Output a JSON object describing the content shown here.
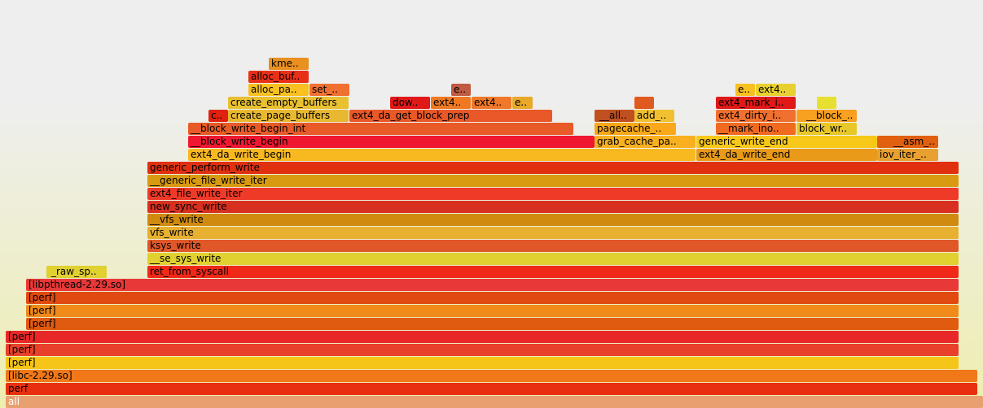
{
  "frames": [
    {
      "label": "all",
      "color": "#e8a070"
    },
    {
      "label": "perf",
      "color": "#e83010"
    },
    {
      "label": "[libc-2.29.so]",
      "color": "#f07818"
    },
    {
      "label": "[perf]",
      "color": "#f5c518"
    },
    {
      "label": "[perf]",
      "color": "#e8402a"
    },
    {
      "label": "[perf]",
      "color": "#e82828"
    },
    {
      "label": "[perf]",
      "color": "#e05a10"
    },
    {
      "label": "[perf]",
      "color": "#f08a18"
    },
    {
      "label": "[perf]",
      "color": "#e04a10"
    },
    {
      "label": "[libpthread-2.29.so]",
      "color": "#e83838"
    },
    {
      "label": "_raw_sp..",
      "color": "#e0d030"
    },
    {
      "label": "ret_from_syscall",
      "color": "#f02818"
    },
    {
      "label": "__se_sys_write",
      "color": "#e0d030"
    },
    {
      "label": "ksys_write",
      "color": "#e05828"
    },
    {
      "label": "vfs_write",
      "color": "#e8b030"
    },
    {
      "label": "__vfs_write",
      "color": "#d08a10"
    },
    {
      "label": "new_sync_write",
      "color": "#d83020"
    },
    {
      "label": "ext4_file_write_iter",
      "color": "#f03a28"
    },
    {
      "label": "__generic_file_write_iter",
      "color": "#d89a10"
    },
    {
      "label": "generic_perform_write",
      "color": "#e03010"
    },
    {
      "label": "ext4_da_write_begin",
      "color": "#f8b820"
    },
    {
      "label": "ext4_da_write_end",
      "color": "#e89a18"
    },
    {
      "label": "iov_iter_..",
      "color": "#e8a030"
    },
    {
      "label": "__block_write_begin",
      "color": "#f01830"
    },
    {
      "label": "grab_cache_pa..",
      "color": "#f8b020"
    },
    {
      "label": "generic_write_end",
      "color": "#f8c818"
    },
    {
      "label": "__asm_..",
      "color": "#e06010"
    },
    {
      "label": "__block_write_begin_int",
      "color": "#e85a28"
    },
    {
      "label": "pagecache_..",
      "color": "#f8a818"
    },
    {
      "label": "__mark_ino..",
      "color": "#f06a20"
    },
    {
      "label": "block_wr..",
      "color": "#e8c828"
    },
    {
      "label": "c..",
      "color": "#e02010"
    },
    {
      "label": "create_page_buffers",
      "color": "#e8b830"
    },
    {
      "label": "ext4_da_get_block_prep",
      "color": "#e85828"
    },
    {
      "label": "__all..",
      "color": "#c05020"
    },
    {
      "label": "add_..",
      "color": "#f0c030"
    },
    {
      "label": "ext4_dirty_i..",
      "color": "#f07030"
    },
    {
      "label": "__block_..",
      "color": "#f8a020"
    },
    {
      "label": "create_empty_buffers",
      "color": "#e8c030"
    },
    {
      "label": "dow..",
      "color": "#e01818"
    },
    {
      "label": "ext4..",
      "color": "#f07820"
    },
    {
      "label": "ext4..",
      "color": "#f07828"
    },
    {
      "label": "e..",
      "color": "#e8a828"
    },
    {
      "label": "",
      "color": "#e05a20"
    },
    {
      "label": "ext4_mark_i..",
      "color": "#e01818"
    },
    {
      "label": "",
      "color": "#e8e030"
    },
    {
      "label": "alloc_pa..",
      "color": "#f8c020"
    },
    {
      "label": "set_..",
      "color": "#f07030"
    },
    {
      "label": "e..",
      "color": "#c05a40"
    },
    {
      "label": "e..",
      "color": "#f8c020"
    },
    {
      "label": "ext4..",
      "color": "#e8d030"
    },
    {
      "label": "alloc_buf..",
      "color": "#e83018"
    },
    {
      "label": "kme..",
      "color": "#e89020"
    }
  ]
}
